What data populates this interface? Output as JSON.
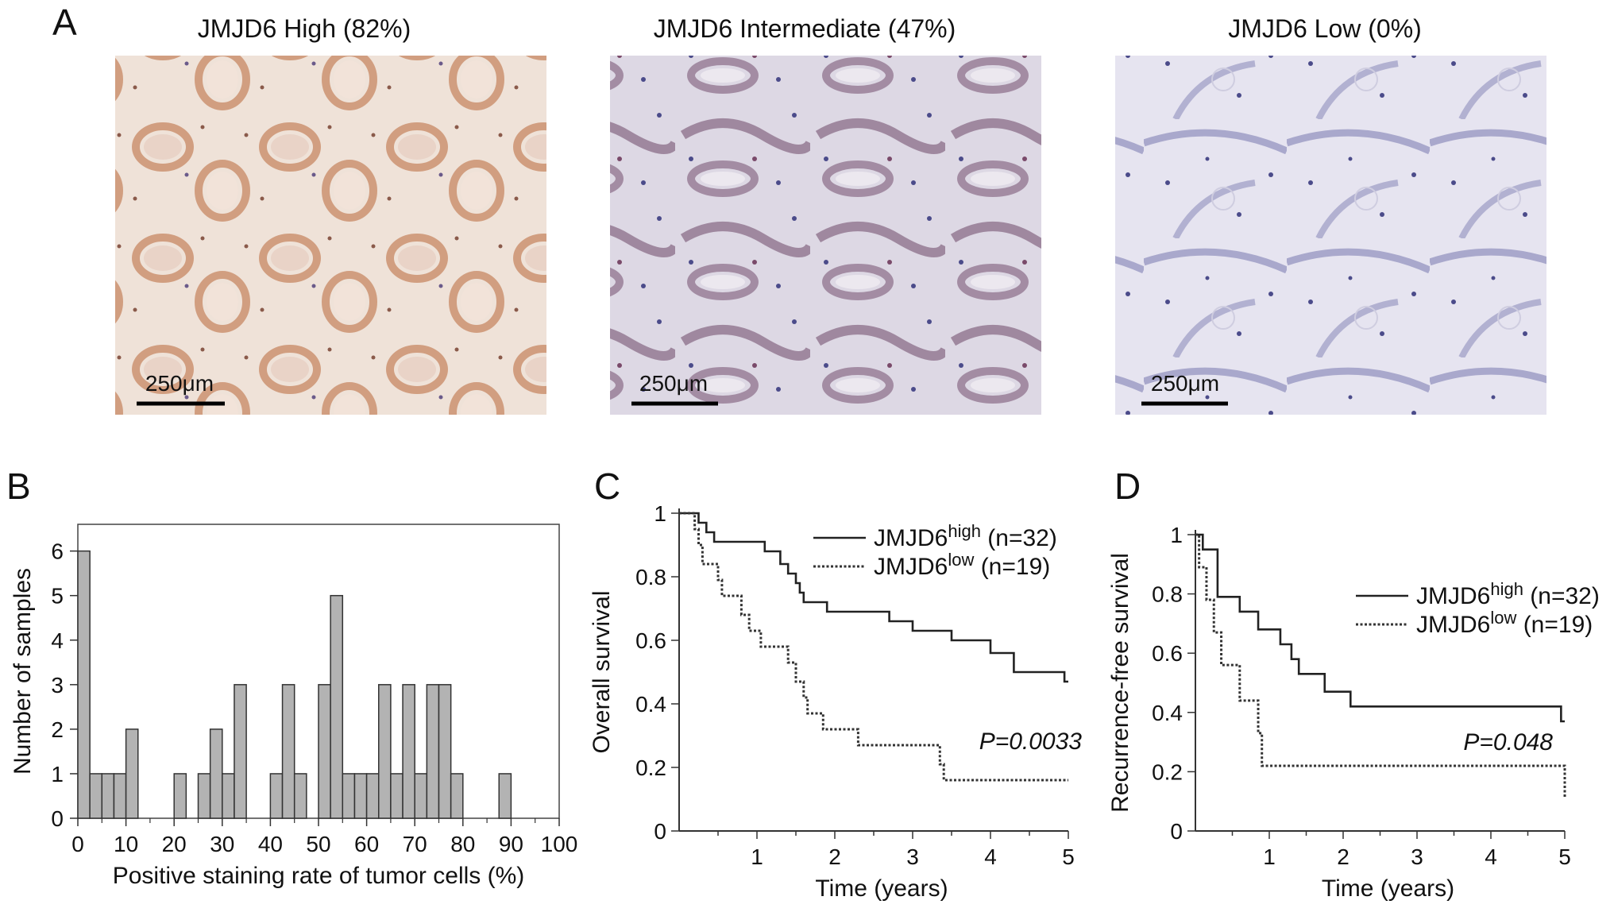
{
  "panel_a": {
    "letter": "A",
    "images": [
      {
        "title": "JMJD6 High (82%)",
        "scale_label": "250μm",
        "stain": "high"
      },
      {
        "title": "JMJD6 Intermediate (47%)",
        "scale_label": "250μm",
        "stain": "intermediate"
      },
      {
        "title": "JMJD6 Low (0%)",
        "scale_label": "250μm",
        "stain": "low"
      }
    ]
  },
  "colors": {
    "bar_fill": "#b3b3b3",
    "bar_stroke": "#333333",
    "high_line": "#222222",
    "low_line": "#333333",
    "stain_high_bg": "#efe2d8",
    "stain_high_gland": "#c98d6a",
    "stain_mid_bg": "#ddd8e4",
    "stain_mid_gland": "#8a6d88",
    "stain_low_bg": "#e6e4f0",
    "stain_low_gland": "#8f8fbd",
    "nuclei": "#4b4b8a"
  },
  "chart_data": [
    {
      "panel": "B",
      "type": "bar",
      "xlabel": "Positive staining rate of tumor cells (%)",
      "ylabel": "Number of samples",
      "xlim": [
        0,
        100
      ],
      "ylim": [
        0,
        6.6
      ],
      "xticks": [
        0,
        10,
        20,
        30,
        40,
        50,
        60,
        70,
        80,
        90,
        100
      ],
      "yticks": [
        0,
        1,
        2,
        3,
        4,
        5,
        6
      ],
      "bin_width": 2.5,
      "bins": [
        {
          "x": 0,
          "y": 6
        },
        {
          "x": 2.5,
          "y": 1
        },
        {
          "x": 5,
          "y": 1
        },
        {
          "x": 7.5,
          "y": 1
        },
        {
          "x": 10,
          "y": 2
        },
        {
          "x": 20,
          "y": 1
        },
        {
          "x": 25,
          "y": 1
        },
        {
          "x": 27.5,
          "y": 2
        },
        {
          "x": 30,
          "y": 1
        },
        {
          "x": 32.5,
          "y": 3
        },
        {
          "x": 40,
          "y": 1
        },
        {
          "x": 42.5,
          "y": 3
        },
        {
          "x": 45,
          "y": 1
        },
        {
          "x": 50,
          "y": 3
        },
        {
          "x": 52.5,
          "y": 5
        },
        {
          "x": 55,
          "y": 1
        },
        {
          "x": 57.5,
          "y": 1
        },
        {
          "x": 60,
          "y": 1
        },
        {
          "x": 62.5,
          "y": 3
        },
        {
          "x": 65,
          "y": 1
        },
        {
          "x": 67.5,
          "y": 3
        },
        {
          "x": 70,
          "y": 1
        },
        {
          "x": 72.5,
          "y": 3
        },
        {
          "x": 75,
          "y": 3
        },
        {
          "x": 77.5,
          "y": 1
        },
        {
          "x": 87.5,
          "y": 1
        }
      ]
    },
    {
      "panel": "C",
      "type": "line",
      "xlabel": "Time (years)",
      "ylabel": "Overall survival",
      "xlim": [
        0,
        5
      ],
      "ylim": [
        0,
        1
      ],
      "xticks": [
        1,
        2,
        3,
        4,
        5
      ],
      "yticks": [
        0,
        0.2,
        0.4,
        0.6,
        0.8,
        1
      ],
      "ytick_labels": [
        "0",
        "0.2",
        "0.4",
        "0.6",
        "0.8",
        "1"
      ],
      "p_value": "P=0.0033",
      "series": [
        {
          "name": "JMJD6",
          "sup": "high",
          "n": "(n=32)",
          "style": "solid",
          "points": [
            [
              0,
              1
            ],
            [
              0.25,
              0.97
            ],
            [
              0.35,
              0.94
            ],
            [
              0.45,
              0.91
            ],
            [
              1.1,
              0.88
            ],
            [
              1.3,
              0.84
            ],
            [
              1.4,
              0.81
            ],
            [
              1.5,
              0.78
            ],
            [
              1.55,
              0.75
            ],
            [
              1.6,
              0.72
            ],
            [
              1.9,
              0.69
            ],
            [
              2.7,
              0.66
            ],
            [
              3.0,
              0.63
            ],
            [
              3.5,
              0.6
            ],
            [
              4.0,
              0.56
            ],
            [
              4.3,
              0.5
            ],
            [
              4.95,
              0.47
            ],
            [
              5,
              0.47
            ]
          ]
        },
        {
          "name": "JMJD6",
          "sup": "low",
          "n": "(n=19)",
          "style": "dotted",
          "points": [
            [
              0,
              1
            ],
            [
              0.2,
              0.95
            ],
            [
              0.25,
              0.9
            ],
            [
              0.3,
              0.84
            ],
            [
              0.5,
              0.79
            ],
            [
              0.55,
              0.74
            ],
            [
              0.8,
              0.68
            ],
            [
              0.9,
              0.63
            ],
            [
              1.05,
              0.58
            ],
            [
              1.4,
              0.53
            ],
            [
              1.5,
              0.47
            ],
            [
              1.6,
              0.42
            ],
            [
              1.65,
              0.37
            ],
            [
              1.85,
              0.32
            ],
            [
              2.3,
              0.27
            ],
            [
              3.35,
              0.21
            ],
            [
              3.4,
              0.16
            ],
            [
              5,
              0.16
            ]
          ]
        }
      ]
    },
    {
      "panel": "D",
      "type": "line",
      "xlabel": "Time (years)",
      "ylabel": "Recurrence-free survival",
      "xlim": [
        0,
        5
      ],
      "ylim": [
        0,
        1
      ],
      "xticks": [
        1,
        2,
        3,
        4,
        5
      ],
      "yticks": [
        0,
        0.2,
        0.4,
        0.6,
        0.8,
        1
      ],
      "ytick_labels": [
        "0",
        "0.2",
        "0.4",
        "0.6",
        "0.8",
        "1"
      ],
      "p_value": "P=0.048",
      "series": [
        {
          "name": "JMJD6",
          "sup": "high",
          "n": "(n=32)",
          "style": "solid",
          "points": [
            [
              0,
              1
            ],
            [
              0.1,
              0.95
            ],
            [
              0.3,
              0.79
            ],
            [
              0.6,
              0.74
            ],
            [
              0.85,
              0.68
            ],
            [
              1.15,
              0.63
            ],
            [
              1.3,
              0.58
            ],
            [
              1.4,
              0.53
            ],
            [
              1.75,
              0.47
            ],
            [
              2.1,
              0.42
            ],
            [
              4.95,
              0.37
            ],
            [
              5,
              0.37
            ]
          ]
        },
        {
          "name": "JMJD6",
          "sup": "low",
          "n": "(n=19)",
          "style": "dotted",
          "points": [
            [
              0,
              1
            ],
            [
              0.05,
              0.89
            ],
            [
              0.15,
              0.78
            ],
            [
              0.25,
              0.67
            ],
            [
              0.35,
              0.56
            ],
            [
              0.6,
              0.44
            ],
            [
              0.85,
              0.33
            ],
            [
              0.9,
              0.22
            ],
            [
              5,
              0.22
            ],
            [
              5,
              0.11
            ]
          ]
        }
      ]
    }
  ],
  "panel_letters": {
    "b": "B",
    "c": "C",
    "d": "D"
  }
}
